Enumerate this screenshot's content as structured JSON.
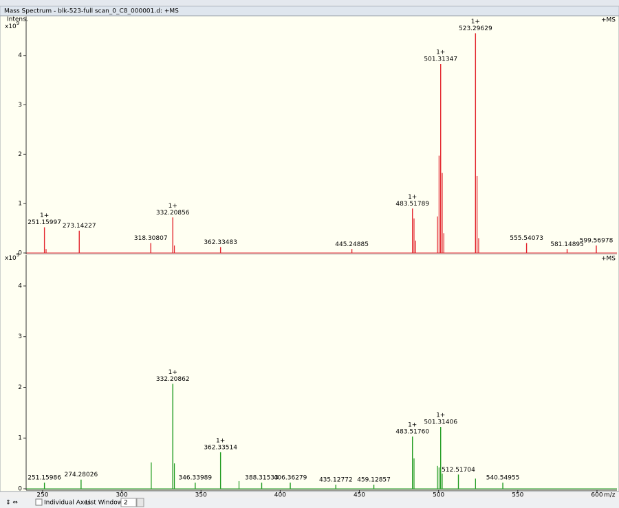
{
  "window": {
    "title": "Mass Spectrum - blk-523-full scan_0_C8_000001.d: +MS"
  },
  "toolbar": {
    "checkbox_label": "Individual Axes",
    "list_windows_label": "List Windows:",
    "list_windows_value": "2"
  },
  "chart_data": [
    {
      "type": "stem",
      "color": "#e3262e",
      "ylabel": "Intens.",
      "y_unit": {
        "base": "x10",
        "exponent": "9"
      },
      "mode_label": "+MS",
      "xlim": [
        239.6,
        612.6
      ],
      "ylim": [
        0,
        4.79
      ],
      "yticks": [
        0,
        1,
        2,
        3,
        4
      ],
      "peaks": {
        "x": [
          251.15997,
          273.14227,
          318.30807,
          332.20856,
          362.33483,
          445.24885,
          483.51789,
          501.31347,
          523.29629,
          555.54073,
          581.14895,
          599.56978
        ],
        "x_labels": [
          "251.15997",
          "273.14227",
          "318.30807",
          "332.20856",
          "362.33483",
          "445.24885",
          "483.51789",
          "501.31347",
          "523.29629",
          "555.54073",
          "581.14895",
          "599.56978"
        ],
        "charges": [
          "1+",
          null,
          null,
          "1+",
          null,
          null,
          "1+",
          "1+",
          "1+",
          null,
          null,
          null
        ],
        "values": [
          0.52,
          0.45,
          0.2,
          0.72,
          0.12,
          0.08,
          0.9,
          3.83,
          4.45,
          0.2,
          0.08,
          0.15
        ]
      },
      "other_peaks": {
        "x": [
          252.2,
          333.2,
          484.5,
          485.5,
          499.3,
          500.3,
          502.3,
          503.3,
          524.3,
          525.3
        ],
        "values": [
          0.08,
          0.15,
          0.7,
          0.25,
          0.74,
          1.97,
          1.62,
          0.4,
          1.56,
          0.3
        ]
      }
    },
    {
      "type": "stem",
      "color": "#1e9a1e",
      "y_unit": {
        "base": "x10",
        "exponent": "9"
      },
      "mode_label": "+MS",
      "xlabel": "m/z",
      "xlim": [
        239.6,
        612.6
      ],
      "xticks": [
        250,
        300,
        350,
        400,
        450,
        500,
        550,
        600
      ],
      "ylim": [
        0,
        4.61
      ],
      "yticks": [
        0,
        1,
        2,
        3,
        4
      ],
      "peaks": {
        "x": [
          251.15986,
          274.28026,
          332.20862,
          346.33989,
          362.33514,
          388.31533,
          406.36279,
          435.12772,
          459.12857,
          483.5176,
          501.31406,
          512.51704,
          540.54955
        ],
        "x_labels": [
          "251.15986",
          "274.28026",
          "332.20862",
          "346.33989",
          "362.33514",
          "388.31533",
          "406.36279",
          "435.12772",
          "459.12857",
          "483.51760",
          "501.31406",
          "512.51704",
          "540.54955"
        ],
        "charges": [
          null,
          null,
          "1+",
          null,
          "1+",
          null,
          null,
          null,
          null,
          "1+",
          "1+",
          null,
          null
        ],
        "values": [
          0.12,
          0.18,
          2.07,
          0.12,
          0.72,
          0.12,
          0.12,
          0.08,
          0.08,
          1.03,
          1.22,
          0.28,
          0.12
        ]
      },
      "other_peaks": {
        "x": [
          318.6,
          333.2,
          374.0,
          484.5,
          499.3,
          500.3,
          502.3,
          523.3
        ],
        "values": [
          0.52,
          0.5,
          0.15,
          0.6,
          0.45,
          0.42,
          0.3,
          0.2
        ]
      }
    }
  ]
}
